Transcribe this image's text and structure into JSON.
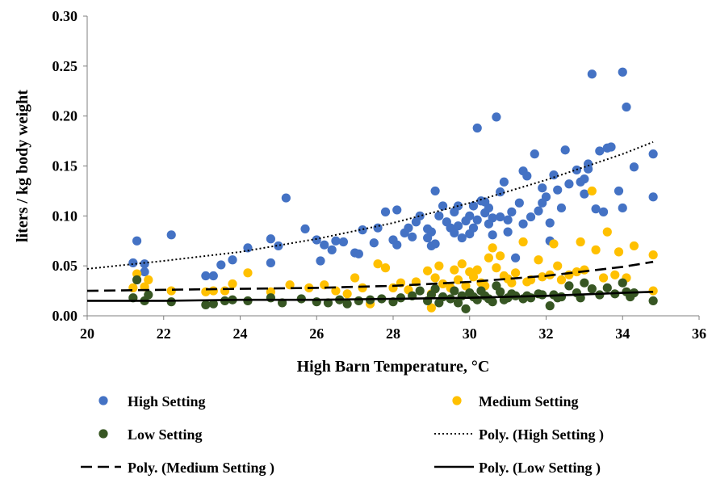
{
  "chart_data": {
    "type": "scatter",
    "title": "",
    "xlabel": "High Barn Temperature, °C",
    "ylabel": "liters / kg body weight",
    "xlim": [
      20,
      36
    ],
    "ylim": [
      0,
      0.3
    ],
    "x_ticks": [
      20,
      22,
      24,
      26,
      28,
      30,
      32,
      34,
      36
    ],
    "x_tick_labels": [
      "20",
      "22",
      "24",
      "26",
      "28",
      "30",
      "32",
      "34",
      "36"
    ],
    "y_ticks": [
      0,
      0.05,
      0.1,
      0.15,
      0.2,
      0.25,
      0.3
    ],
    "y_tick_labels": [
      "0.00",
      "0.05",
      "0.10",
      "0.15",
      "0.20",
      "0.25",
      "0.30"
    ],
    "grid": false,
    "legend_position": "bottom",
    "series": [
      {
        "name": "High Setting",
        "kind": "points",
        "color": "#4472C4",
        "points": [
          [
            21.2,
            0.053
          ],
          [
            21.3,
            0.075
          ],
          [
            21.5,
            0.044
          ],
          [
            21.5,
            0.052
          ],
          [
            22.2,
            0.081
          ],
          [
            23.1,
            0.04
          ],
          [
            23.3,
            0.04
          ],
          [
            23.5,
            0.051
          ],
          [
            23.8,
            0.056
          ],
          [
            24.2,
            0.068
          ],
          [
            24.8,
            0.077
          ],
          [
            24.8,
            0.053
          ],
          [
            25.0,
            0.07
          ],
          [
            25.2,
            0.118
          ],
          [
            25.7,
            0.087
          ],
          [
            26.0,
            0.076
          ],
          [
            26.1,
            0.055
          ],
          [
            26.2,
            0.071
          ],
          [
            26.4,
            0.066
          ],
          [
            26.5,
            0.075
          ],
          [
            26.7,
            0.074
          ],
          [
            27.0,
            0.063
          ],
          [
            27.1,
            0.062
          ],
          [
            27.2,
            0.086
          ],
          [
            27.5,
            0.073
          ],
          [
            27.6,
            0.088
          ],
          [
            27.8,
            0.104
          ],
          [
            28.0,
            0.076
          ],
          [
            28.1,
            0.106
          ],
          [
            28.1,
            0.071
          ],
          [
            28.3,
            0.083
          ],
          [
            28.4,
            0.088
          ],
          [
            28.5,
            0.079
          ],
          [
            28.6,
            0.094
          ],
          [
            28.7,
            0.1
          ],
          [
            28.9,
            0.087
          ],
          [
            28.9,
            0.078
          ],
          [
            29.0,
            0.07
          ],
          [
            29.0,
            0.084
          ],
          [
            29.1,
            0.072
          ],
          [
            29.1,
            0.125
          ],
          [
            29.2,
            0.1
          ],
          [
            29.3,
            0.11
          ],
          [
            29.4,
            0.094
          ],
          [
            29.5,
            0.088
          ],
          [
            29.6,
            0.083
          ],
          [
            29.6,
            0.104
          ],
          [
            29.7,
            0.09
          ],
          [
            29.7,
            0.11
          ],
          [
            29.8,
            0.078
          ],
          [
            29.9,
            0.095
          ],
          [
            30.0,
            0.1
          ],
          [
            30.0,
            0.082
          ],
          [
            30.1,
            0.11
          ],
          [
            30.1,
            0.088
          ],
          [
            30.2,
            0.096
          ],
          [
            30.2,
            0.188
          ],
          [
            30.3,
            0.115
          ],
          [
            30.4,
            0.103
          ],
          [
            30.4,
            0.114
          ],
          [
            30.5,
            0.108
          ],
          [
            30.5,
            0.092
          ],
          [
            30.6,
            0.098
          ],
          [
            30.6,
            0.081
          ],
          [
            30.7,
            0.199
          ],
          [
            30.8,
            0.124
          ],
          [
            30.8,
            0.099
          ],
          [
            30.9,
            0.134
          ],
          [
            31.0,
            0.084
          ],
          [
            31.0,
            0.096
          ],
          [
            31.1,
            0.104
          ],
          [
            31.2,
            0.058
          ],
          [
            31.3,
            0.113
          ],
          [
            31.4,
            0.145
          ],
          [
            31.4,
            0.092
          ],
          [
            31.5,
            0.14
          ],
          [
            31.6,
            0.099
          ],
          [
            31.7,
            0.162
          ],
          [
            31.8,
            0.105
          ],
          [
            31.9,
            0.113
          ],
          [
            31.9,
            0.128
          ],
          [
            32.0,
            0.119
          ],
          [
            32.1,
            0.093
          ],
          [
            32.1,
            0.075
          ],
          [
            32.2,
            0.141
          ],
          [
            32.3,
            0.126
          ],
          [
            32.4,
            0.108
          ],
          [
            32.5,
            0.166
          ],
          [
            32.6,
            0.132
          ],
          [
            32.8,
            0.146
          ],
          [
            32.9,
            0.134
          ],
          [
            33.0,
            0.137
          ],
          [
            33.0,
            0.122
          ],
          [
            33.1,
            0.147
          ],
          [
            33.1,
            0.152
          ],
          [
            33.2,
            0.242
          ],
          [
            33.3,
            0.107
          ],
          [
            33.4,
            0.165
          ],
          [
            33.5,
            0.104
          ],
          [
            33.6,
            0.168
          ],
          [
            33.7,
            0.169
          ],
          [
            33.9,
            0.125
          ],
          [
            34.0,
            0.244
          ],
          [
            34.1,
            0.209
          ],
          [
            34.3,
            0.149
          ],
          [
            34.0,
            0.108
          ],
          [
            34.8,
            0.162
          ],
          [
            34.8,
            0.119
          ]
        ]
      },
      {
        "name": "Medium Setting",
        "kind": "points",
        "color": "#FFC000",
        "points": [
          [
            21.2,
            0.028
          ],
          [
            21.3,
            0.042
          ],
          [
            21.5,
            0.029
          ],
          [
            21.6,
            0.036
          ],
          [
            22.2,
            0.025
          ],
          [
            23.1,
            0.024
          ],
          [
            23.3,
            0.025
          ],
          [
            23.6,
            0.025
          ],
          [
            23.8,
            0.032
          ],
          [
            24.2,
            0.043
          ],
          [
            24.8,
            0.024
          ],
          [
            25.3,
            0.031
          ],
          [
            25.8,
            0.028
          ],
          [
            26.2,
            0.031
          ],
          [
            26.5,
            0.025
          ],
          [
            26.8,
            0.022
          ],
          [
            27.0,
            0.038
          ],
          [
            27.2,
            0.028
          ],
          [
            27.4,
            0.012
          ],
          [
            27.6,
            0.052
          ],
          [
            27.8,
            0.048
          ],
          [
            28.0,
            0.028
          ],
          [
            28.2,
            0.033
          ],
          [
            28.4,
            0.026
          ],
          [
            28.6,
            0.034
          ],
          [
            28.9,
            0.045
          ],
          [
            29.0,
            0.022
          ],
          [
            29.0,
            0.008
          ],
          [
            29.1,
            0.038
          ],
          [
            29.2,
            0.05
          ],
          [
            29.3,
            0.032
          ],
          [
            29.5,
            0.028
          ],
          [
            29.6,
            0.046
          ],
          [
            29.7,
            0.036
          ],
          [
            29.8,
            0.052
          ],
          [
            29.9,
            0.03
          ],
          [
            30.0,
            0.044
          ],
          [
            30.1,
            0.039
          ],
          [
            30.2,
            0.046
          ],
          [
            30.3,
            0.033
          ],
          [
            30.4,
            0.03
          ],
          [
            30.5,
            0.058
          ],
          [
            30.6,
            0.068
          ],
          [
            30.7,
            0.048
          ],
          [
            30.8,
            0.06
          ],
          [
            30.9,
            0.04
          ],
          [
            31.0,
            0.037
          ],
          [
            31.1,
            0.033
          ],
          [
            31.2,
            0.043
          ],
          [
            31.4,
            0.074
          ],
          [
            31.5,
            0.034
          ],
          [
            31.6,
            0.036
          ],
          [
            31.8,
            0.056
          ],
          [
            31.9,
            0.039
          ],
          [
            32.1,
            0.041
          ],
          [
            32.2,
            0.072
          ],
          [
            32.3,
            0.05
          ],
          [
            32.4,
            0.036
          ],
          [
            32.6,
            0.041
          ],
          [
            32.8,
            0.044
          ],
          [
            32.9,
            0.074
          ],
          [
            33.0,
            0.046
          ],
          [
            33.2,
            0.125
          ],
          [
            33.3,
            0.066
          ],
          [
            33.5,
            0.038
          ],
          [
            33.6,
            0.084
          ],
          [
            33.8,
            0.041
          ],
          [
            33.9,
            0.064
          ],
          [
            34.1,
            0.038
          ],
          [
            34.3,
            0.07
          ],
          [
            34.8,
            0.061
          ],
          [
            34.8,
            0.025
          ]
        ]
      },
      {
        "name": "Low Setting",
        "kind": "points",
        "color": "#375623",
        "points": [
          [
            21.2,
            0.018
          ],
          [
            21.3,
            0.036
          ],
          [
            21.5,
            0.015
          ],
          [
            21.6,
            0.021
          ],
          [
            22.2,
            0.014
          ],
          [
            23.1,
            0.011
          ],
          [
            23.3,
            0.012
          ],
          [
            23.6,
            0.015
          ],
          [
            23.8,
            0.016
          ],
          [
            24.2,
            0.015
          ],
          [
            24.8,
            0.018
          ],
          [
            25.1,
            0.013
          ],
          [
            25.6,
            0.017
          ],
          [
            26.0,
            0.014
          ],
          [
            26.3,
            0.013
          ],
          [
            26.6,
            0.016
          ],
          [
            26.8,
            0.012
          ],
          [
            27.1,
            0.015
          ],
          [
            27.4,
            0.016
          ],
          [
            27.7,
            0.017
          ],
          [
            28.0,
            0.014
          ],
          [
            28.2,
            0.018
          ],
          [
            28.5,
            0.02
          ],
          [
            28.7,
            0.025
          ],
          [
            28.9,
            0.015
          ],
          [
            29.0,
            0.021
          ],
          [
            29.1,
            0.027
          ],
          [
            29.2,
            0.013
          ],
          [
            29.3,
            0.019
          ],
          [
            29.5,
            0.017
          ],
          [
            29.6,
            0.025
          ],
          [
            29.7,
            0.013
          ],
          [
            29.8,
            0.02
          ],
          [
            29.9,
            0.007
          ],
          [
            30.0,
            0.023
          ],
          [
            30.1,
            0.019
          ],
          [
            30.2,
            0.016
          ],
          [
            30.3,
            0.025
          ],
          [
            30.4,
            0.02
          ],
          [
            30.5,
            0.017
          ],
          [
            30.6,
            0.014
          ],
          [
            30.7,
            0.03
          ],
          [
            30.8,
            0.024
          ],
          [
            30.9,
            0.016
          ],
          [
            31.0,
            0.018
          ],
          [
            31.1,
            0.022
          ],
          [
            31.2,
            0.02
          ],
          [
            31.4,
            0.017
          ],
          [
            31.5,
            0.02
          ],
          [
            31.6,
            0.018
          ],
          [
            31.8,
            0.022
          ],
          [
            31.9,
            0.021
          ],
          [
            32.1,
            0.01
          ],
          [
            32.2,
            0.021
          ],
          [
            32.3,
            0.018
          ],
          [
            32.4,
            0.019
          ],
          [
            32.6,
            0.03
          ],
          [
            32.8,
            0.023
          ],
          [
            32.9,
            0.018
          ],
          [
            33.0,
            0.033
          ],
          [
            33.2,
            0.027
          ],
          [
            33.4,
            0.021
          ],
          [
            33.6,
            0.028
          ],
          [
            33.8,
            0.022
          ],
          [
            34.0,
            0.033
          ],
          [
            34.1,
            0.024
          ],
          [
            34.2,
            0.019
          ],
          [
            34.3,
            0.023
          ],
          [
            34.8,
            0.015
          ]
        ]
      },
      {
        "name": "Poly. (High Setting )",
        "kind": "trendline",
        "dash": "dotted",
        "points": [
          [
            20,
            0.047
          ],
          [
            22,
            0.055
          ],
          [
            24,
            0.064
          ],
          [
            26,
            0.077
          ],
          [
            28,
            0.093
          ],
          [
            30,
            0.113
          ],
          [
            32,
            0.136
          ],
          [
            34,
            0.162
          ],
          [
            34.8,
            0.174
          ]
        ]
      },
      {
        "name": "Poly. (Medium Setting )",
        "kind": "trendline",
        "dash": "dashed",
        "points": [
          [
            20,
            0.025
          ],
          [
            22,
            0.026
          ],
          [
            24,
            0.027
          ],
          [
            26,
            0.028
          ],
          [
            28,
            0.03
          ],
          [
            30,
            0.034
          ],
          [
            32,
            0.04
          ],
          [
            34,
            0.049
          ],
          [
            34.8,
            0.054
          ]
        ]
      },
      {
        "name": "Poly. (Low Setting )",
        "kind": "trendline",
        "dash": "solid",
        "points": [
          [
            20,
            0.015
          ],
          [
            22,
            0.015
          ],
          [
            24,
            0.016
          ],
          [
            26,
            0.016
          ],
          [
            28,
            0.017
          ],
          [
            30,
            0.018
          ],
          [
            32,
            0.02
          ],
          [
            34,
            0.023
          ],
          [
            34.8,
            0.024
          ]
        ]
      }
    ],
    "legend": [
      {
        "label": "High Setting",
        "marker": "dot",
        "color": "#4472C4"
      },
      {
        "label": "Medium Setting",
        "marker": "dot",
        "color": "#FFC000"
      },
      {
        "label": "Low Setting",
        "marker": "dot",
        "color": "#375623"
      },
      {
        "label": "Poly. (High Setting )",
        "marker": "dotted-line",
        "color": "#000000"
      },
      {
        "label": "Poly. (Medium Setting )",
        "marker": "dashed-line",
        "color": "#000000"
      },
      {
        "label": "Poly. (Low Setting )",
        "marker": "solid-line",
        "color": "#000000"
      }
    ]
  }
}
